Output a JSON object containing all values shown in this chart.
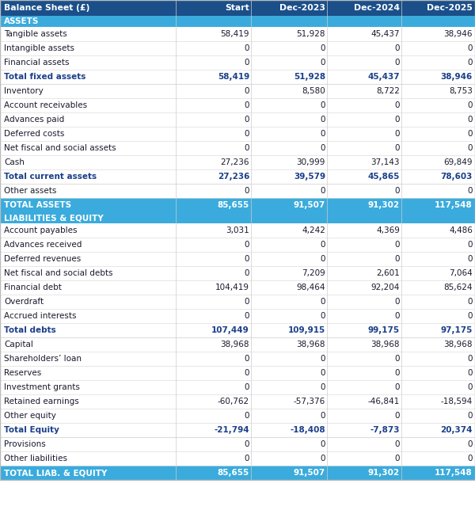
{
  "title": "Balance Sheet (£)",
  "header_bg": "#1B4F8A",
  "header_text": "#FFFFFF",
  "section_bg": "#3AABDC",
  "section_text": "#FFFFFF",
  "total_bg": "#3AABDC",
  "total_text": "#FFFFFF",
  "bold_text": "#1B3F8A",
  "normal_text": "#1A1A2E",
  "white": "#FFFFFF",
  "col_headers": [
    "Start",
    "Dec-2023",
    "Dec-2024",
    "Dec-2025"
  ],
  "rows": [
    {
      "label": "ASSETS",
      "type": "section",
      "values": [
        "",
        "",
        "",
        ""
      ]
    },
    {
      "label": "Tangible assets",
      "type": "normal",
      "values": [
        "58,419",
        "51,928",
        "45,437",
        "38,946"
      ]
    },
    {
      "label": "Intangible assets",
      "type": "normal",
      "values": [
        "0",
        "0",
        "0",
        "0"
      ]
    },
    {
      "label": "Financial assets",
      "type": "normal",
      "values": [
        "0",
        "0",
        "0",
        "0"
      ]
    },
    {
      "label": "Total fixed assets",
      "type": "bold",
      "values": [
        "58,419",
        "51,928",
        "45,437",
        "38,946"
      ]
    },
    {
      "label": "Inventory",
      "type": "normal",
      "values": [
        "0",
        "8,580",
        "8,722",
        "8,753"
      ]
    },
    {
      "label": "Account receivables",
      "type": "normal",
      "values": [
        "0",
        "0",
        "0",
        "0"
      ]
    },
    {
      "label": "Advances paid",
      "type": "normal",
      "values": [
        "0",
        "0",
        "0",
        "0"
      ]
    },
    {
      "label": "Deferred costs",
      "type": "normal",
      "values": [
        "0",
        "0",
        "0",
        "0"
      ]
    },
    {
      "label": "Net fiscal and social assets",
      "type": "normal",
      "values": [
        "0",
        "0",
        "0",
        "0"
      ]
    },
    {
      "label": "Cash",
      "type": "normal",
      "values": [
        "27,236",
        "30,999",
        "37,143",
        "69,849"
      ]
    },
    {
      "label": "Total current assets",
      "type": "bold",
      "values": [
        "27,236",
        "39,579",
        "45,865",
        "78,603"
      ]
    },
    {
      "label": "Other assets",
      "type": "normal",
      "values": [
        "0",
        "0",
        "0",
        "0"
      ]
    },
    {
      "label": "TOTAL ASSETS",
      "type": "total",
      "values": [
        "85,655",
        "91,507",
        "91,302",
        "117,548"
      ]
    },
    {
      "label": "LIABILITIES & EQUITY",
      "type": "section",
      "values": [
        "",
        "",
        "",
        ""
      ]
    },
    {
      "label": "Account payables",
      "type": "normal",
      "values": [
        "3,031",
        "4,242",
        "4,369",
        "4,486"
      ]
    },
    {
      "label": "Advances received",
      "type": "normal",
      "values": [
        "0",
        "0",
        "0",
        "0"
      ]
    },
    {
      "label": "Deferred revenues",
      "type": "normal",
      "values": [
        "0",
        "0",
        "0",
        "0"
      ]
    },
    {
      "label": "Net fiscal and social debts",
      "type": "normal",
      "values": [
        "0",
        "7,209",
        "2,601",
        "7,064"
      ]
    },
    {
      "label": "Financial debt",
      "type": "normal",
      "values": [
        "104,419",
        "98,464",
        "92,204",
        "85,624"
      ]
    },
    {
      "label": "Overdraft",
      "type": "normal",
      "values": [
        "0",
        "0",
        "0",
        "0"
      ]
    },
    {
      "label": "Accrued interests",
      "type": "normal",
      "values": [
        "0",
        "0",
        "0",
        "0"
      ]
    },
    {
      "label": "Total debts",
      "type": "bold",
      "values": [
        "107,449",
        "109,915",
        "99,175",
        "97,175"
      ]
    },
    {
      "label": "Capital",
      "type": "normal",
      "values": [
        "38,968",
        "38,968",
        "38,968",
        "38,968"
      ]
    },
    {
      "label": "Shareholders’ loan",
      "type": "normal",
      "values": [
        "0",
        "0",
        "0",
        "0"
      ]
    },
    {
      "label": "Reserves",
      "type": "normal",
      "values": [
        "0",
        "0",
        "0",
        "0"
      ]
    },
    {
      "label": "Investment grants",
      "type": "normal",
      "values": [
        "0",
        "0",
        "0",
        "0"
      ]
    },
    {
      "label": "Retained earnings",
      "type": "normal",
      "values": [
        "-60,762",
        "-57,376",
        "-46,841",
        "-18,594"
      ]
    },
    {
      "label": "Other equity",
      "type": "normal",
      "values": [
        "0",
        "0",
        "0",
        "0"
      ]
    },
    {
      "label": "Total Equity",
      "type": "bold",
      "values": [
        "-21,794",
        "-18,408",
        "-7,873",
        "20,374"
      ]
    },
    {
      "label": "Provisions",
      "type": "normal",
      "values": [
        "0",
        "0",
        "0",
        "0"
      ]
    },
    {
      "label": "Other liabilities",
      "type": "normal",
      "values": [
        "0",
        "0",
        "0",
        "0"
      ]
    },
    {
      "label": "TOTAL LIAB. & EQUITY",
      "type": "total",
      "values": [
        "85,655",
        "91,507",
        "91,302",
        "117,548"
      ]
    }
  ]
}
